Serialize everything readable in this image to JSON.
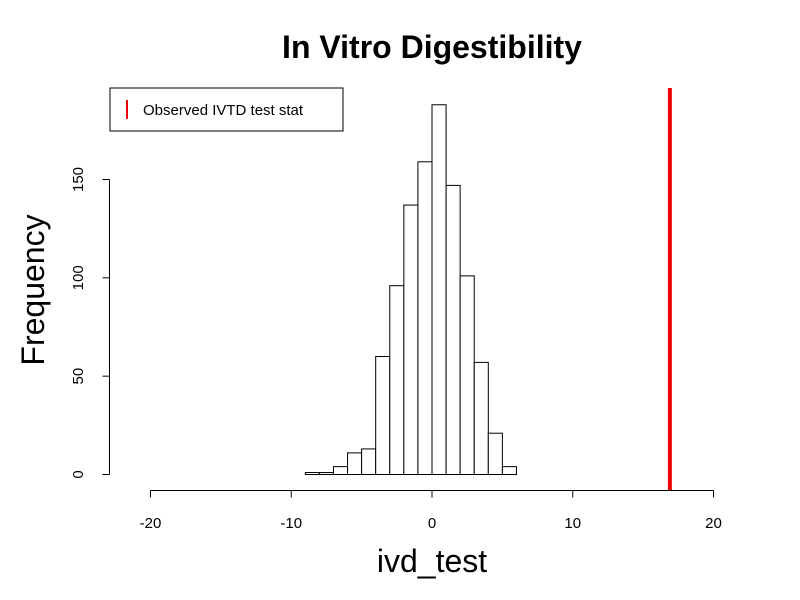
{
  "chart_data": {
    "type": "bar",
    "title": "In Vitro Digestibility",
    "xlabel": "ivd_test",
    "ylabel": "Frequency",
    "xlim": [
      -22,
      21
    ],
    "ylim": [
      0,
      190
    ],
    "x_ticks": [
      -20,
      -10,
      0,
      10,
      20
    ],
    "y_ticks": [
      0,
      50,
      100,
      150
    ],
    "x_tick_labels": [
      "-20",
      "-10",
      "0",
      "10",
      "20"
    ],
    "y_tick_labels": [
      "0",
      "50",
      "100",
      "150"
    ],
    "bin_width": 1,
    "bins": [
      {
        "x0": -9,
        "x1": -8,
        "count": 1
      },
      {
        "x0": -8,
        "x1": -7,
        "count": 1
      },
      {
        "x0": -7,
        "x1": -6,
        "count": 4
      },
      {
        "x0": -6,
        "x1": -5,
        "count": 11
      },
      {
        "x0": -5,
        "x1": -4,
        "count": 13
      },
      {
        "x0": -4,
        "x1": -3,
        "count": 60
      },
      {
        "x0": -3,
        "x1": -2,
        "count": 96
      },
      {
        "x0": -2,
        "x1": -1,
        "count": 137
      },
      {
        "x0": -1,
        "x1": 0,
        "count": 159
      },
      {
        "x0": 0,
        "x1": 1,
        "count": 188
      },
      {
        "x0": 1,
        "x1": 2,
        "count": 147
      },
      {
        "x0": 2,
        "x1": 3,
        "count": 101
      },
      {
        "x0": 3,
        "x1": 4,
        "count": 57
      },
      {
        "x0": 4,
        "x1": 5,
        "count": 21
      },
      {
        "x0": 5,
        "x1": 6,
        "count": 4
      }
    ],
    "observed_line": {
      "x": 16.9,
      "label": "Observed IVTD test stat",
      "color": "#ee0000"
    },
    "legend": {
      "position": "top-left",
      "entries": [
        "Observed IVTD test stat"
      ]
    },
    "grid": false
  }
}
